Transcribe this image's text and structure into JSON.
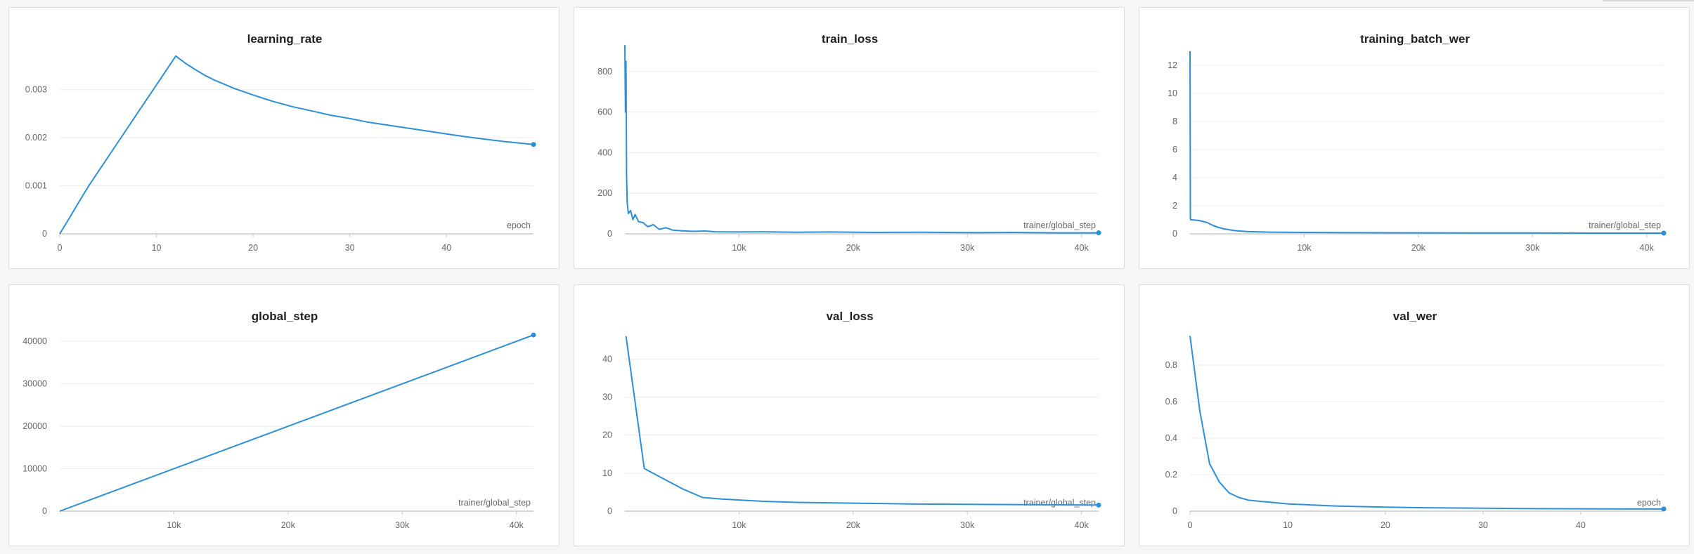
{
  "colors": {
    "series": "#2d8fd8",
    "panel_bg": "#ffffff",
    "page_bg": "#f6f6f6"
  },
  "chart_data": [
    {
      "id": "learning_rate",
      "type": "line",
      "title": "learning_rate",
      "xlabel": "epoch",
      "xlim": [
        0,
        49
      ],
      "ylim": [
        0,
        0.0038
      ],
      "xticks": [
        0,
        10,
        20,
        30,
        40
      ],
      "xtick_labels": [
        "0",
        "10",
        "20",
        "30",
        "40"
      ],
      "yticks": [
        0,
        0.001,
        0.002,
        0.003
      ],
      "ytick_labels": [
        "0",
        "0.001",
        "0.002",
        "0.003"
      ],
      "series": [
        {
          "name": "learning_rate",
          "x": [
            0,
            1,
            2,
            3,
            4,
            5,
            6,
            7,
            8,
            9,
            10,
            11,
            12,
            13,
            14,
            15,
            16,
            18,
            20,
            22,
            24,
            26,
            28,
            30,
            32,
            34,
            36,
            38,
            40,
            42,
            44,
            46,
            49
          ],
          "y": [
            0,
            0.00033,
            0.00067,
            0.001,
            0.0013,
            0.0016,
            0.0019,
            0.0022,
            0.0025,
            0.0028,
            0.0031,
            0.0034,
            0.0037,
            0.00355,
            0.00342,
            0.0033,
            0.0032,
            0.00303,
            0.00289,
            0.00276,
            0.00265,
            0.00256,
            0.00247,
            0.0024,
            0.00232,
            0.00226,
            0.0022,
            0.00214,
            0.00208,
            0.00202,
            0.00197,
            0.00192,
            0.00186
          ]
        }
      ]
    },
    {
      "id": "train_loss",
      "type": "line",
      "title": "train_loss",
      "xlabel": "trainer/global_step",
      "xlim": [
        0,
        41500
      ],
      "ylim": [
        0,
        900
      ],
      "xticks": [
        10000,
        20000,
        30000,
        40000
      ],
      "xtick_labels": [
        "10k",
        "20k",
        "30k",
        "40k"
      ],
      "yticks": [
        0,
        200,
        400,
        600,
        800
      ],
      "ytick_labels": [
        "0",
        "200",
        "400",
        "600",
        "800"
      ],
      "series": [
        {
          "name": "train_loss",
          "x": [
            0,
            50,
            100,
            150,
            200,
            300,
            500,
            700,
            900,
            1200,
            1600,
            2000,
            2500,
            3000,
            3600,
            4200,
            5000,
            6000,
            7000,
            8000,
            10000,
            12000,
            15000,
            18000,
            22000,
            26000,
            30000,
            34000,
            38000,
            41500
          ],
          "y": [
            930,
            600,
            850,
            300,
            160,
            100,
            115,
            70,
            95,
            60,
            55,
            35,
            45,
            22,
            30,
            18,
            15,
            12,
            14,
            10,
            9,
            10,
            8,
            9,
            7,
            8,
            6,
            7,
            5,
            5
          ]
        }
      ]
    },
    {
      "id": "training_batch_wer",
      "type": "line",
      "title": "training_batch_wer",
      "xlabel": "trainer/global_step",
      "xlim": [
        0,
        41500
      ],
      "ylim": [
        0,
        13
      ],
      "xticks": [
        10000,
        20000,
        30000,
        40000
      ],
      "xtick_labels": [
        "10k",
        "20k",
        "30k",
        "40k"
      ],
      "yticks": [
        0,
        2,
        4,
        6,
        8,
        10,
        12
      ],
      "ytick_labels": [
        "0",
        "2",
        "4",
        "6",
        "8",
        "10",
        "12"
      ],
      "series": [
        {
          "name": "training_batch_wer",
          "x": [
            0,
            30,
            60,
            120,
            800,
            1500,
            2000,
            2500,
            3000,
            3500,
            4000,
            5000,
            6000,
            7000,
            8000,
            10000,
            15000,
            20000,
            25000,
            30000,
            35000,
            41500
          ],
          "y": [
            13,
            1.1,
            1.0,
            1.0,
            0.95,
            0.8,
            0.6,
            0.45,
            0.35,
            0.28,
            0.22,
            0.16,
            0.14,
            0.12,
            0.11,
            0.1,
            0.08,
            0.07,
            0.06,
            0.06,
            0.05,
            0.05
          ]
        }
      ]
    },
    {
      "id": "global_step",
      "type": "line",
      "title": "global_step",
      "xlabel": "trainer/global_step",
      "xlim": [
        0,
        41500
      ],
      "ylim": [
        0,
        43000
      ],
      "xticks": [
        10000,
        20000,
        30000,
        40000
      ],
      "xtick_labels": [
        "10k",
        "20k",
        "30k",
        "40k"
      ],
      "yticks": [
        0,
        10000,
        20000,
        30000,
        40000
      ],
      "ytick_labels": [
        "0",
        "10000",
        "20000",
        "30000",
        "40000"
      ],
      "series": [
        {
          "name": "global_step",
          "x": [
            0,
            41500
          ],
          "y": [
            0,
            41500
          ]
        }
      ]
    },
    {
      "id": "val_loss",
      "type": "line",
      "title": "val_loss",
      "xlabel": "trainer/global_step",
      "xlim": [
        0,
        41500
      ],
      "ylim": [
        0,
        48
      ],
      "xticks": [
        10000,
        20000,
        30000,
        40000
      ],
      "xtick_labels": [
        "10k",
        "20k",
        "30k",
        "40k"
      ],
      "yticks": [
        0,
        10,
        20,
        30,
        40
      ],
      "ytick_labels": [
        "0",
        "10",
        "20",
        "30",
        "40"
      ],
      "series": [
        {
          "name": "val_loss",
          "x": [
            100,
            1700,
            3400,
            5100,
            6800,
            8500,
            12000,
            15000,
            20000,
            25000,
            30000,
            35000,
            41500
          ],
          "y": [
            46,
            11.2,
            8.5,
            5.8,
            3.6,
            3.2,
            2.6,
            2.3,
            2.1,
            1.9,
            1.8,
            1.7,
            1.6
          ]
        }
      ]
    },
    {
      "id": "val_wer",
      "type": "line",
      "title": "val_wer",
      "xlabel": "epoch",
      "xlim": [
        0,
        48.5
      ],
      "ylim": [
        0,
        1.0
      ],
      "xticks": [
        0,
        10,
        20,
        30,
        40
      ],
      "xtick_labels": [
        "0",
        "10",
        "20",
        "30",
        "40"
      ],
      "yticks": [
        0,
        0.2,
        0.4,
        0.6,
        0.8
      ],
      "ytick_labels": [
        "0",
        "0.2",
        "0.4",
        "0.6",
        "0.8"
      ],
      "series": [
        {
          "name": "val_wer",
          "x": [
            0,
            1,
            2,
            3,
            4,
            5,
            6,
            7,
            8,
            10,
            12,
            15,
            20,
            25,
            30,
            35,
            40,
            45,
            48.5
          ],
          "y": [
            0.96,
            0.55,
            0.26,
            0.16,
            0.1,
            0.075,
            0.06,
            0.055,
            0.05,
            0.04,
            0.035,
            0.028,
            0.022,
            0.018,
            0.016,
            0.014,
            0.013,
            0.012,
            0.012
          ]
        }
      ]
    }
  ]
}
